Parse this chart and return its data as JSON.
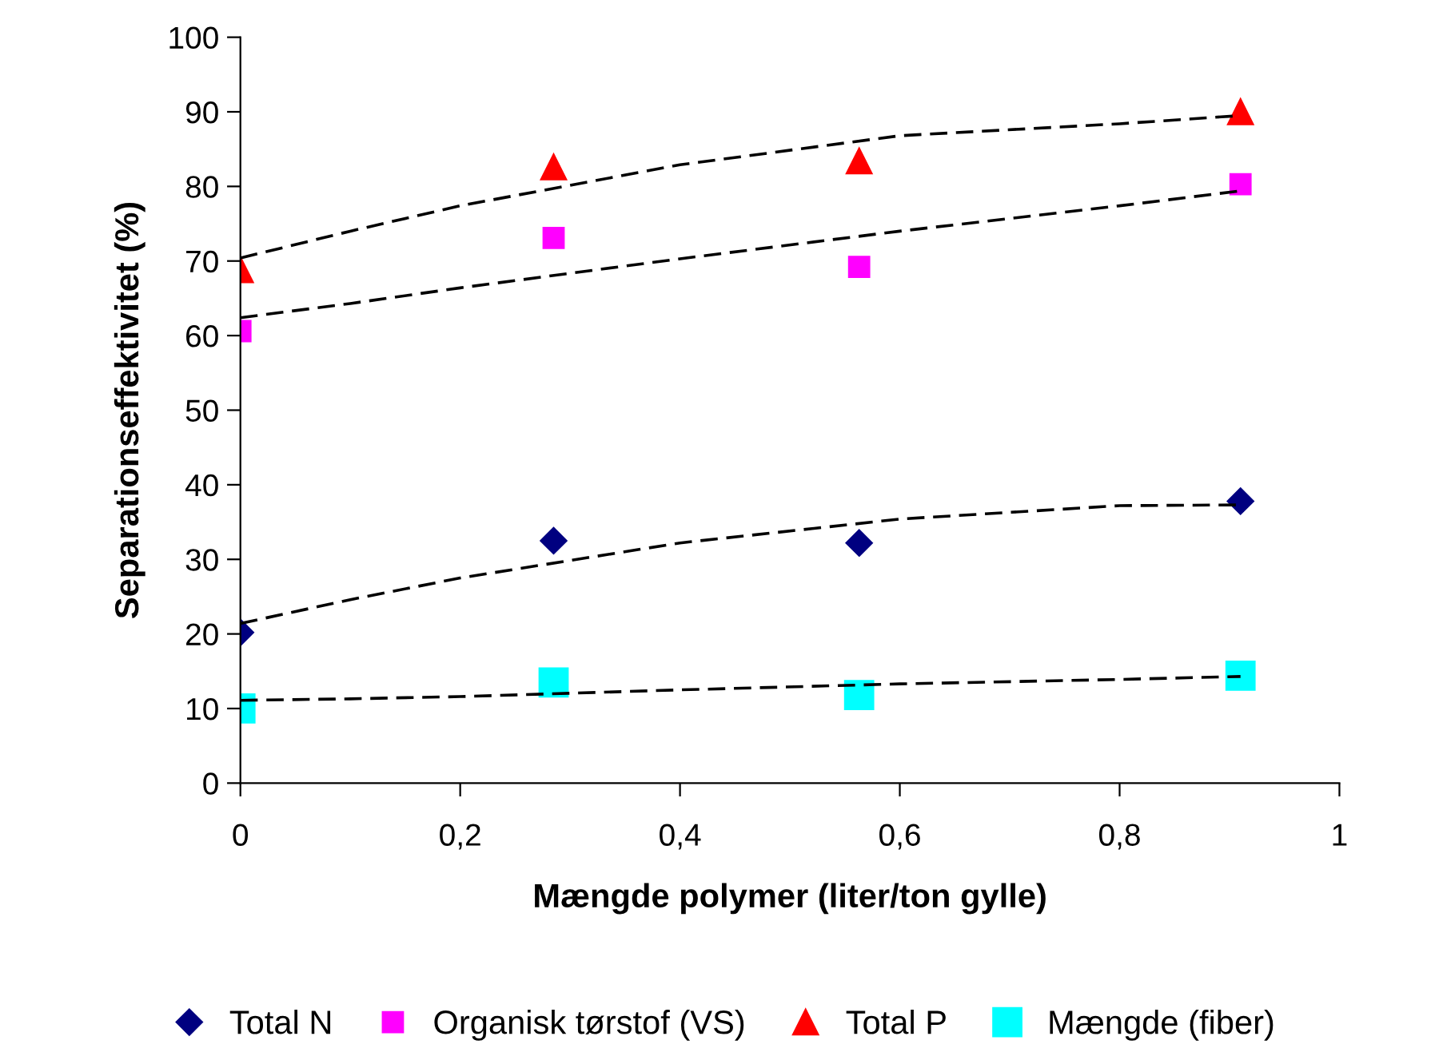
{
  "chart_data": {
    "type": "scatter",
    "xlabel": "Mængde polymer (liter/ton gylle)",
    "ylabel": "Separationseffektivitet (%)",
    "x": [
      0,
      0.285,
      0.563,
      0.91
    ],
    "series": [
      {
        "name": "Total N",
        "color": "#000080",
        "marker": "diamond",
        "values": [
          20.2,
          32.5,
          32.2,
          37.8
        ]
      },
      {
        "name": "Organisk tørstof (VS)",
        "color": "#ff00ff",
        "marker": "square",
        "values": [
          60.6,
          73.1,
          69.2,
          80.3
        ]
      },
      {
        "name": "Total P",
        "color": "#ff0000",
        "marker": "triangle",
        "values": [
          68.8,
          82.6,
          83.4,
          90.0
        ]
      },
      {
        "name": "Mængde (fiber)",
        "color": "#00ffff",
        "marker": "square",
        "values": [
          10.0,
          13.5,
          11.8,
          14.4
        ]
      },
      {
        "type": "line",
        "color": "#000000",
        "line_style": "dashed",
        "marker": "none",
        "x": [
          0,
          0.1,
          0.2,
          0.4,
          0.6,
          0.8,
          0.91
        ],
        "values": [
          21.4,
          24.6,
          27.5,
          32.2,
          35.4,
          37.2,
          37.3
        ]
      },
      {
        "type": "line",
        "color": "#000000",
        "line_style": "dashed",
        "marker": "none",
        "x": [
          0,
          0.1,
          0.2,
          0.4,
          0.6,
          0.8,
          0.91
        ],
        "values": [
          62.4,
          64.3,
          66.4,
          70.3,
          74.0,
          77.4,
          79.4
        ]
      },
      {
        "type": "line",
        "color": "#000000",
        "line_style": "dashed",
        "marker": "none",
        "x": [
          0,
          0.1,
          0.2,
          0.4,
          0.6,
          0.8,
          0.91
        ],
        "values": [
          70.4,
          74.0,
          77.4,
          82.9,
          86.8,
          88.4,
          89.5
        ]
      },
      {
        "type": "line",
        "color": "#000000",
        "line_style": "dashed",
        "marker": "none",
        "x": [
          0,
          0.1,
          0.2,
          0.4,
          0.6,
          0.8,
          0.91
        ],
        "values": [
          11.1,
          11.3,
          11.6,
          12.5,
          13.3,
          13.9,
          14.3
        ]
      }
    ],
    "xlim": [
      0,
      1
    ],
    "xticks": [
      {
        "value": 0,
        "label": "0"
      },
      {
        "value": 0.2,
        "label": "0,2"
      },
      {
        "value": 0.4,
        "label": "0,4"
      },
      {
        "value": 0.6,
        "label": "0,6"
      },
      {
        "value": 0.8,
        "label": "0,8"
      },
      {
        "value": 1,
        "label": "1"
      }
    ],
    "ylim": [
      0,
      100
    ],
    "yticks": [
      0,
      10,
      20,
      30,
      40,
      50,
      60,
      70,
      80,
      90,
      100
    ],
    "grid": false,
    "legend": "bottom"
  }
}
